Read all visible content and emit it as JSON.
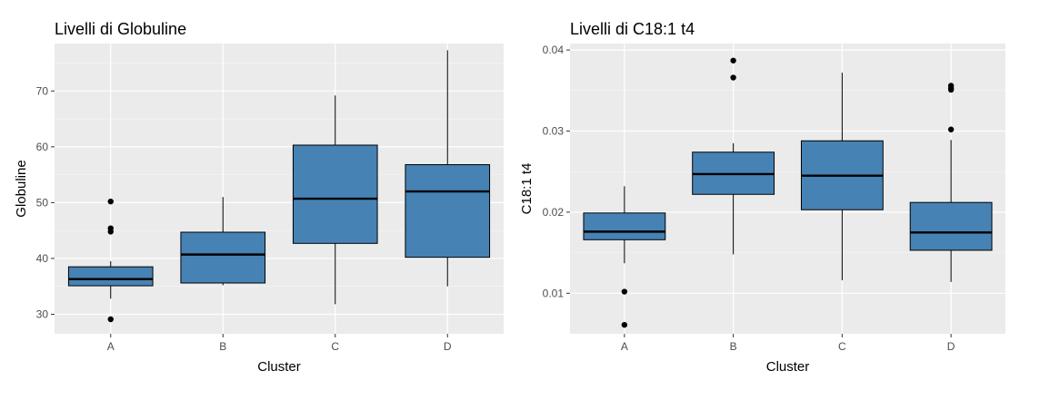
{
  "chart_data": [
    {
      "type": "boxplot",
      "title": "Livelli di Globuline",
      "xlabel": "Cluster",
      "ylabel": "Globuline",
      "ylim": [
        26.5,
        78.5
      ],
      "yticks": [
        30,
        40,
        50,
        60,
        70
      ],
      "ytick_labels": [
        "30",
        "40",
        "50",
        "60",
        "70"
      ],
      "grid": true,
      "fill_color": "#4682b4",
      "background_color": "#ebebeb",
      "categories": [
        "A",
        "B",
        "C",
        "D"
      ],
      "boxes": [
        {
          "category": "A",
          "whisker_low": 32.8,
          "q1": 35.1,
          "median": 36.3,
          "q3": 38.5,
          "whisker_high": 39.5,
          "outliers": [
            29.1,
            44.8,
            45.4,
            50.2
          ]
        },
        {
          "category": "B",
          "whisker_low": 35.2,
          "q1": 35.6,
          "median": 40.7,
          "q3": 44.7,
          "whisker_high": 51.0,
          "outliers": []
        },
        {
          "category": "C",
          "whisker_low": 31.8,
          "q1": 42.7,
          "median": 50.7,
          "q3": 60.3,
          "whisker_high": 69.2,
          "outliers": []
        },
        {
          "category": "D",
          "whisker_low": 35.0,
          "q1": 40.2,
          "median": 52.0,
          "q3": 56.8,
          "whisker_high": 77.3,
          "outliers": []
        }
      ]
    },
    {
      "type": "boxplot",
      "title": "Livelli di C18:1 t4",
      "xlabel": "Cluster",
      "ylabel": "C18:1 t4",
      "ylim": [
        0.005,
        0.0408
      ],
      "yticks": [
        0.01,
        0.02,
        0.03,
        0.04
      ],
      "ytick_labels": [
        "0.01",
        "0.02",
        "0.03",
        "0.04"
      ],
      "grid": true,
      "fill_color": "#4682b4",
      "background_color": "#ebebeb",
      "categories": [
        "A",
        "B",
        "C",
        "D"
      ],
      "boxes": [
        {
          "category": "A",
          "whisker_low": 0.0137,
          "q1": 0.0166,
          "median": 0.0176,
          "q3": 0.0199,
          "whisker_high": 0.0232,
          "outliers": [
            0.0061,
            0.0102
          ]
        },
        {
          "category": "B",
          "whisker_low": 0.0148,
          "q1": 0.0222,
          "median": 0.0247,
          "q3": 0.0274,
          "whisker_high": 0.0285,
          "outliers": [
            0.0366,
            0.0387
          ]
        },
        {
          "category": "C",
          "whisker_low": 0.0116,
          "q1": 0.0203,
          "median": 0.0245,
          "q3": 0.0288,
          "whisker_high": 0.0372,
          "outliers": []
        },
        {
          "category": "D",
          "whisker_low": 0.0114,
          "q1": 0.0153,
          "median": 0.0175,
          "q3": 0.0212,
          "whisker_high": 0.0289,
          "outliers": [
            0.0302,
            0.0351,
            0.0353,
            0.0356
          ]
        }
      ]
    }
  ]
}
